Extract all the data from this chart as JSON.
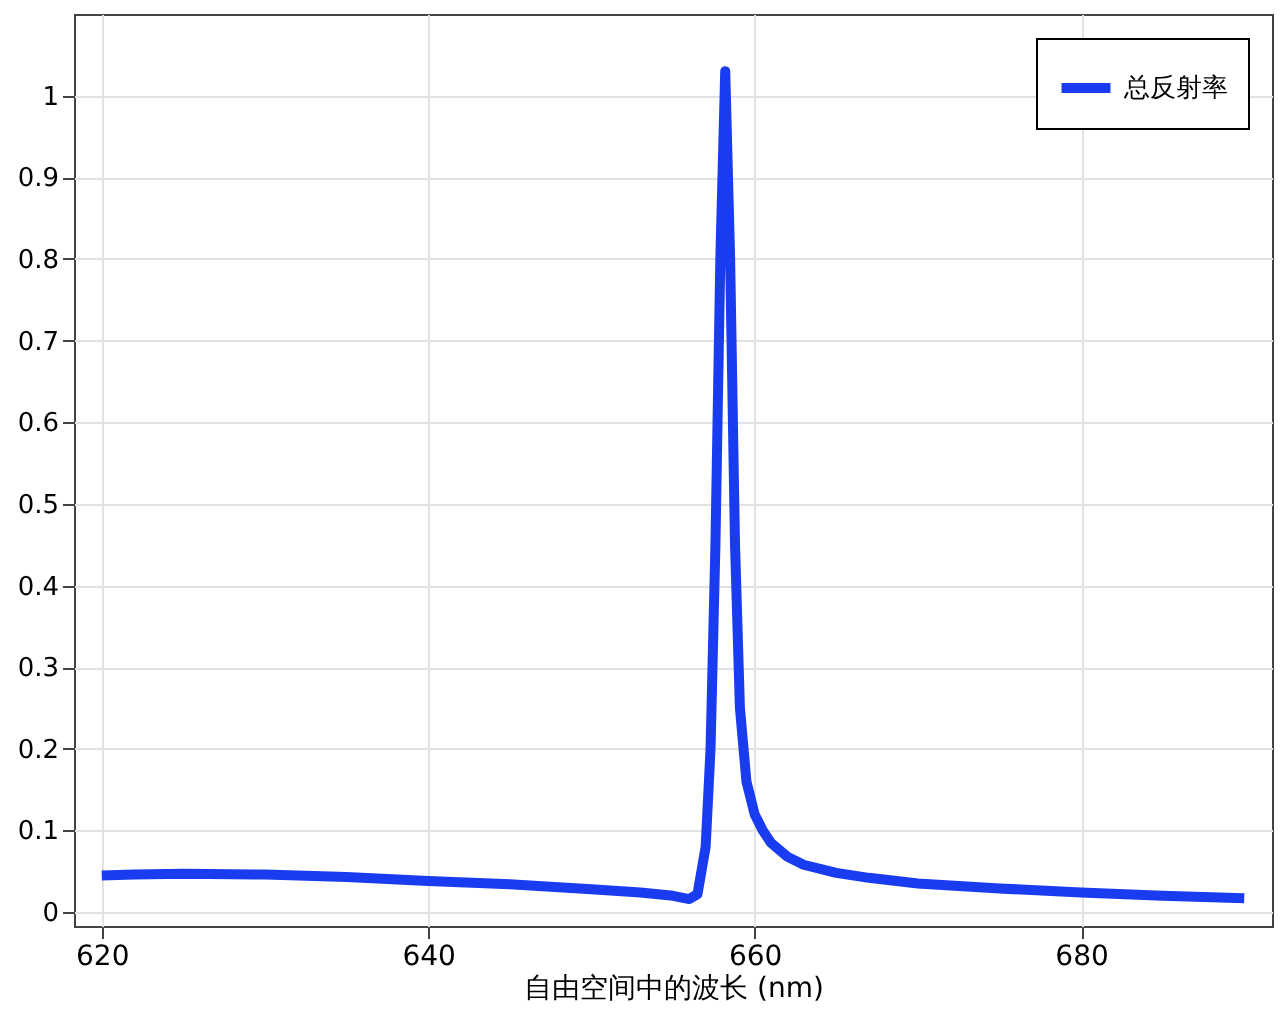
{
  "chart_data": {
    "type": "line",
    "xlabel": "自由空间中的波长 (nm)",
    "xlim": [
      618.3,
      691.7
    ],
    "xticks": [
      620,
      640,
      660,
      680
    ],
    "ylim": [
      -0.017,
      1.1
    ],
    "yticks": [
      0,
      0.1,
      0.2,
      0.3,
      0.4,
      0.5,
      0.6,
      0.7,
      0.8,
      0.9,
      1
    ],
    "grid": true,
    "legend": "top right",
    "line_style": "solid",
    "series": [
      {
        "name": "总反射率",
        "color": "#1a3cf0",
        "x": [
          620,
          622,
          625,
          630,
          635,
          640,
          645,
          650,
          653,
          655,
          656,
          656.5,
          657,
          657.3,
          657.6,
          657.9,
          658.2,
          658.5,
          658.8,
          659.1,
          659.5,
          660,
          660.5,
          661,
          662,
          663,
          665,
          667,
          670,
          675,
          680,
          685,
          690
        ],
        "values": [
          0.045,
          0.046,
          0.047,
          0.046,
          0.043,
          0.038,
          0.034,
          0.028,
          0.024,
          0.02,
          0.016,
          0.022,
          0.08,
          0.2,
          0.45,
          0.8,
          1.03,
          0.8,
          0.45,
          0.25,
          0.16,
          0.12,
          0.1,
          0.085,
          0.068,
          0.058,
          0.048,
          0.042,
          0.035,
          0.029,
          0.024,
          0.02,
          0.017
        ]
      }
    ]
  }
}
